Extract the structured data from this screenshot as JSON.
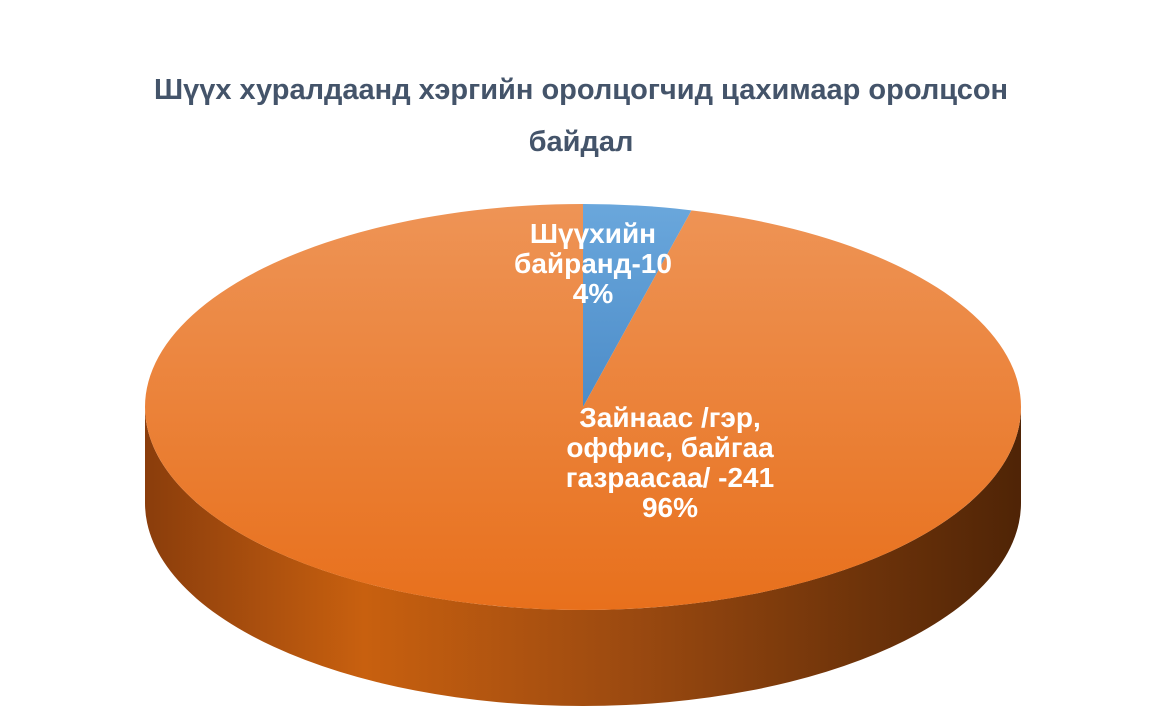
{
  "chart_data": {
    "type": "pie",
    "title_lines": [
      "Шүүх хуралдаанд хэргийн оролцогчид цахимаар оролцсон",
      "байдал"
    ],
    "slices": [
      {
        "name": "Шүүхийн байранд",
        "value": 10,
        "percent": "4%",
        "color": "#5B9BD5",
        "label_lines": [
          "Шүүхийн",
          "байранд-10",
          "4%"
        ]
      },
      {
        "name": "Зайнаас /гэр, оффис, байгаа газраасаа/",
        "value": 241,
        "percent": "96%",
        "color": "#ED7D31",
        "label_lines": [
          "Зайнаас /гэр,",
          "оффис, байгаа",
          "газраасаа/ -241",
          "96%"
        ]
      }
    ],
    "style": "3d",
    "legend": "none"
  }
}
